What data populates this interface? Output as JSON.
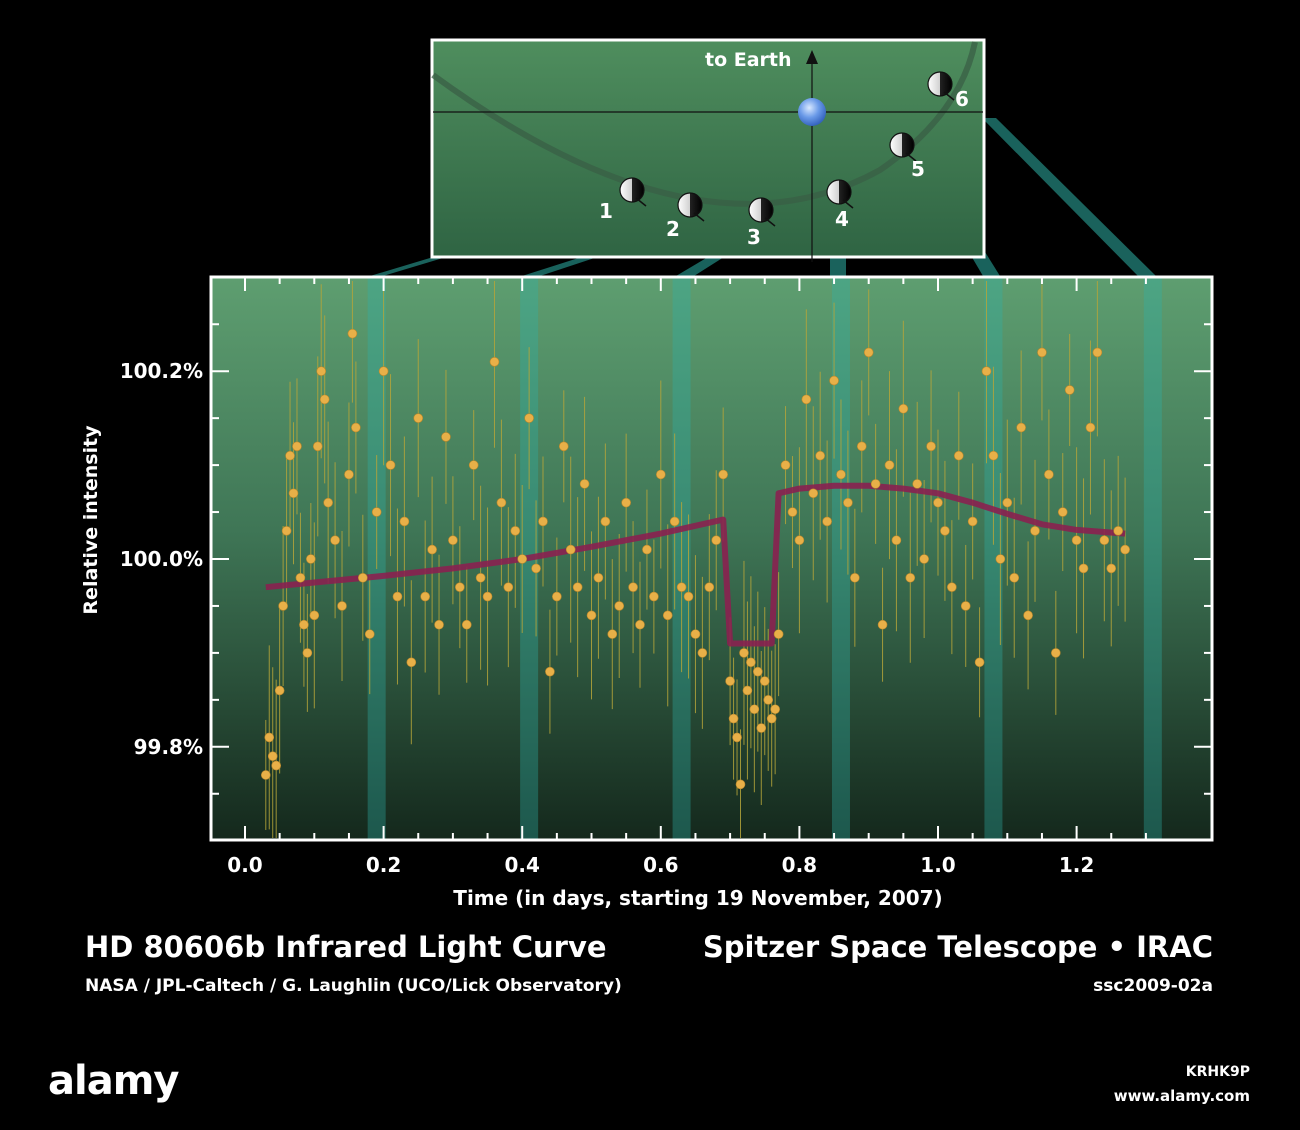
{
  "chart_data": {
    "type": "scatter",
    "title": "HD 80606b Infrared Light Curve",
    "xlabel": "Time (in days, starting 19 November, 2007)",
    "ylabel": "Relative intensity",
    "xlim": [
      -0.05,
      1.4
    ],
    "ylim": [
      99.7,
      100.3
    ],
    "x_ticks": [
      "0.0",
      "0.2",
      "0.4",
      "0.6",
      "0.8",
      "1.0",
      "1.2"
    ],
    "x_tick_values": [
      0.0,
      0.2,
      0.4,
      0.6,
      0.8,
      1.0,
      1.2
    ],
    "y_ticks": [
      "99.8%",
      "100.0%",
      "100.2%"
    ],
    "y_tick_values": [
      99.8,
      100.0,
      100.2
    ],
    "point_color": "#e8b048",
    "errorbar_color": "#b5a53a",
    "model_color": "#8a2150",
    "model": {
      "x": [
        0.03,
        0.1,
        0.2,
        0.3,
        0.4,
        0.5,
        0.6,
        0.69,
        0.7,
        0.76,
        0.77,
        0.8,
        0.85,
        0.9,
        0.95,
        1.0,
        1.05,
        1.1,
        1.15,
        1.2,
        1.27
      ],
      "y": [
        99.97,
        99.975,
        99.982,
        99.99,
        100.0,
        100.013,
        100.027,
        100.042,
        99.91,
        99.91,
        100.07,
        100.075,
        100.078,
        100.078,
        100.075,
        100.07,
        100.06,
        100.048,
        100.037,
        100.031,
        100.027
      ]
    },
    "points": {
      "x": [
        0.03,
        0.035,
        0.04,
        0.045,
        0.05,
        0.055,
        0.06,
        0.065,
        0.07,
        0.075,
        0.08,
        0.085,
        0.09,
        0.095,
        0.1,
        0.105,
        0.11,
        0.115,
        0.12,
        0.13,
        0.14,
        0.15,
        0.155,
        0.16,
        0.17,
        0.18,
        0.19,
        0.2,
        0.21,
        0.22,
        0.23,
        0.24,
        0.25,
        0.26,
        0.27,
        0.28,
        0.29,
        0.3,
        0.31,
        0.32,
        0.33,
        0.34,
        0.35,
        0.36,
        0.37,
        0.38,
        0.39,
        0.4,
        0.41,
        0.42,
        0.43,
        0.44,
        0.45,
        0.46,
        0.47,
        0.48,
        0.49,
        0.5,
        0.51,
        0.52,
        0.53,
        0.54,
        0.55,
        0.56,
        0.57,
        0.58,
        0.59,
        0.6,
        0.61,
        0.62,
        0.63,
        0.64,
        0.65,
        0.66,
        0.67,
        0.68,
        0.69,
        0.7,
        0.705,
        0.71,
        0.715,
        0.72,
        0.725,
        0.73,
        0.735,
        0.74,
        0.745,
        0.75,
        0.755,
        0.76,
        0.765,
        0.77,
        0.78,
        0.79,
        0.8,
        0.81,
        0.82,
        0.83,
        0.84,
        0.85,
        0.86,
        0.87,
        0.88,
        0.89,
        0.9,
        0.91,
        0.92,
        0.93,
        0.94,
        0.95,
        0.96,
        0.97,
        0.98,
        0.99,
        1.0,
        1.01,
        1.02,
        1.03,
        1.04,
        1.05,
        1.06,
        1.07,
        1.08,
        1.09,
        1.1,
        1.11,
        1.12,
        1.13,
        1.14,
        1.15,
        1.16,
        1.17,
        1.18,
        1.19,
        1.2,
        1.21,
        1.22,
        1.23,
        1.24,
        1.25,
        1.26,
        1.27
      ],
      "y": [
        99.77,
        99.81,
        99.79,
        99.78,
        99.86,
        99.95,
        100.03,
        100.11,
        100.07,
        100.12,
        99.98,
        99.93,
        99.9,
        100.0,
        99.94,
        100.12,
        100.2,
        100.17,
        100.06,
        100.02,
        99.95,
        100.09,
        100.24,
        100.14,
        99.98,
        99.92,
        100.05,
        100.2,
        100.1,
        99.96,
        100.04,
        99.89,
        100.15,
        99.96,
        100.01,
        99.93,
        100.13,
        100.02,
        99.97,
        99.93,
        100.1,
        99.98,
        99.96,
        100.21,
        100.06,
        99.97,
        100.03,
        100.0,
        100.15,
        99.99,
        100.04,
        99.88,
        99.96,
        100.12,
        100.01,
        99.97,
        100.08,
        99.94,
        99.98,
        100.04,
        99.92,
        99.95,
        100.06,
        99.97,
        99.93,
        100.01,
        99.96,
        100.09,
        99.94,
        100.04,
        99.97,
        99.96,
        99.92,
        99.9,
        99.97,
        100.02,
        100.09,
        99.87,
        99.83,
        99.81,
        99.76,
        99.9,
        99.86,
        99.89,
        99.84,
        99.88,
        99.82,
        99.87,
        99.85,
        99.83,
        99.84,
        99.92,
        100.1,
        100.05,
        100.02,
        100.17,
        100.07,
        100.11,
        100.04,
        100.19,
        100.09,
        100.06,
        99.98,
        100.12,
        100.22,
        100.08,
        99.93,
        100.1,
        100.02,
        100.16,
        99.98,
        100.08,
        100.0,
        100.12,
        100.06,
        100.03,
        99.97,
        100.11,
        99.95,
        100.04,
        99.89,
        100.2,
        100.11,
        100.0,
        100.06,
        99.98,
        100.14,
        99.94,
        100.03,
        100.22,
        100.09,
        99.9,
        100.05,
        100.18,
        100.02,
        99.99,
        100.14,
        100.22,
        100.02,
        99.99,
        100.03,
        100.01
      ]
    }
  },
  "orbit_panel": {
    "earth_label": "to Earth",
    "positions": [
      "1",
      "2",
      "3",
      "4",
      "5",
      "6"
    ]
  },
  "captions": {
    "title_right": "Spitzer Space Telescope • IRAC",
    "credit_left": "NASA / JPL-Caltech / G. Laughlin (UCO/Lick Observatory)",
    "credit_right": "ssc2009-02a"
  },
  "branding": {
    "logo": "alamy",
    "image_id": "KRHK9P",
    "url": "www.alamy.com"
  }
}
